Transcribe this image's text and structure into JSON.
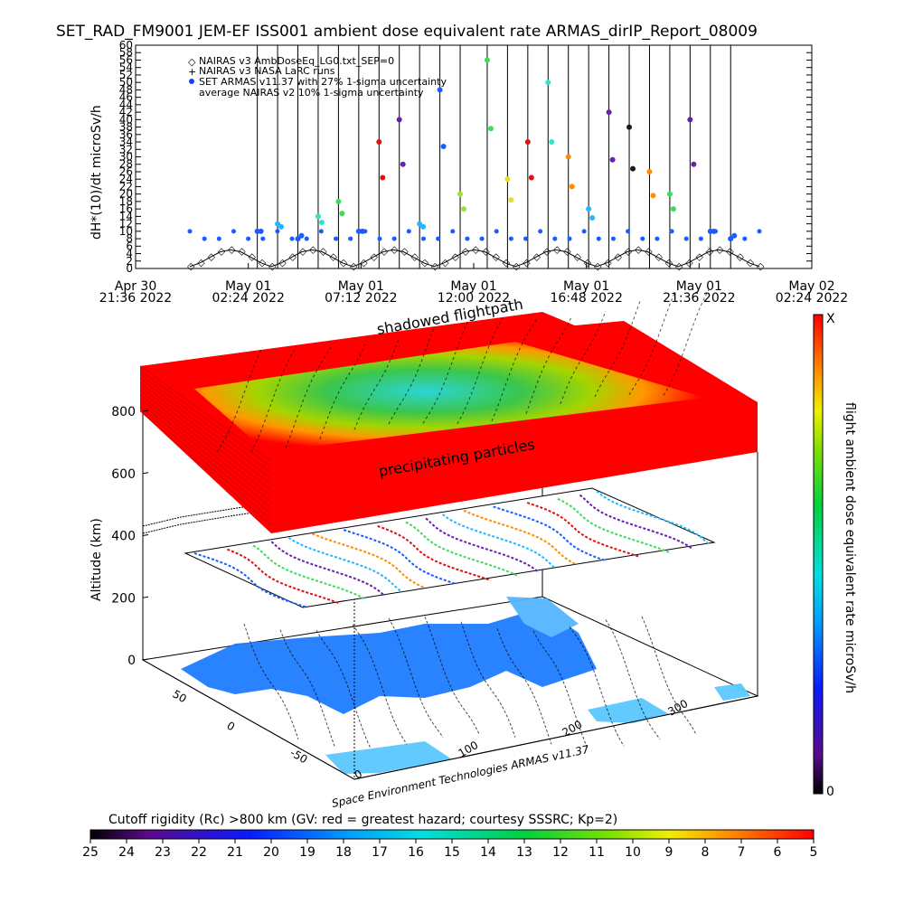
{
  "chart_data": [
    {
      "type": "line",
      "title": "SET_RAD_FM9001  JEM-EF ISS001 ambient dose equivalent rate ARMAS_dirIP_Report_08009",
      "ylabel": "dH*(10)/dt microSv/h",
      "ylim": [
        0,
        60
      ],
      "yticks": [
        0,
        2,
        4,
        6,
        8,
        10,
        12,
        14,
        16,
        18,
        20,
        22,
        24,
        26,
        28,
        30,
        32,
        34,
        36,
        38,
        40,
        42,
        44,
        46,
        48,
        50,
        52,
        54,
        56,
        58,
        60
      ],
      "xticks": [
        {
          "day": "Apr 30",
          "time": "21:36  2022"
        },
        {
          "day": "May 01",
          "time": "02:24  2022"
        },
        {
          "day": "May 01",
          "time": "07:12  2022"
        },
        {
          "day": "May 01",
          "time": "12:00  2022"
        },
        {
          "day": "May 01",
          "time": "16:48  2022"
        },
        {
          "day": "May 01",
          "time": "21:36  2022"
        },
        {
          "day": "May 02",
          "time": "02:24  2022"
        }
      ],
      "legend_position": "top-left",
      "series": [
        {
          "name": "NAIRAS v3 AmbDoseEq_LG0.txt_SEP=0",
          "marker": "diamond",
          "values_note_period_orbits": 15
        },
        {
          "name": "NAIRAS v3 NASA LaRC runs",
          "marker": "plus"
        },
        {
          "name": "SET ARMAS v11.37 with 27% 1-sigma uncertainty",
          "marker": "dot"
        },
        {
          "name": "average NAIRAS v2 10% 1-sigma uncertainty",
          "marker": "none"
        }
      ],
      "diamond_series_values": [
        0.5,
        1.5,
        3,
        4.5,
        5,
        4.5,
        3,
        1.5,
        0.5,
        1.5,
        3,
        4.5,
        5,
        4.5,
        3,
        1.5,
        0.5,
        1.5,
        3,
        4.5,
        5,
        4.5,
        3,
        1.5,
        0.5,
        1.5,
        3,
        4.5,
        5,
        4.5,
        3,
        1.5,
        0.5,
        1.5,
        3,
        4.5,
        5,
        4.5,
        3,
        1.5,
        0.5,
        1.5,
        3,
        4.5,
        5,
        4.5,
        3,
        1.5,
        0.5,
        1.5,
        3,
        4.5,
        5,
        4.5,
        3,
        1.5,
        0.5
      ],
      "armas_dots": [
        {
          "x": 0.18,
          "y": 10,
          "color": "#1a5cff"
        },
        {
          "x": 0.21,
          "y": 12,
          "color": "#22b8ff"
        },
        {
          "x": 0.24,
          "y": 8,
          "color": "#1a5cff"
        },
        {
          "x": 0.27,
          "y": 14,
          "color": "#2de5c8"
        },
        {
          "x": 0.3,
          "y": 18,
          "color": "#3ddc5a"
        },
        {
          "x": 0.33,
          "y": 10,
          "color": "#1a5cff"
        },
        {
          "x": 0.36,
          "y": 34,
          "color": "#e01010"
        },
        {
          "x": 0.39,
          "y": 40,
          "color": "#6a1fb0"
        },
        {
          "x": 0.42,
          "y": 12,
          "color": "#22b8ff"
        },
        {
          "x": 0.45,
          "y": 48,
          "color": "#1a5cff"
        },
        {
          "x": 0.48,
          "y": 20,
          "color": "#9fe03a"
        },
        {
          "x": 0.52,
          "y": 56,
          "color": "#3ddc5a"
        },
        {
          "x": 0.55,
          "y": 24,
          "color": "#e6e020"
        },
        {
          "x": 0.58,
          "y": 34,
          "color": "#e01010"
        },
        {
          "x": 0.61,
          "y": 50,
          "color": "#2de5c8"
        },
        {
          "x": 0.64,
          "y": 30,
          "color": "#ff8c00"
        },
        {
          "x": 0.67,
          "y": 16,
          "color": "#22b8ff"
        },
        {
          "x": 0.7,
          "y": 42,
          "color": "#6a1fb0"
        },
        {
          "x": 0.73,
          "y": 38,
          "color": "#1a1a1a"
        },
        {
          "x": 0.76,
          "y": 26,
          "color": "#ff8c00"
        },
        {
          "x": 0.79,
          "y": 20,
          "color": "#3ddc5a"
        },
        {
          "x": 0.82,
          "y": 40,
          "color": "#6a1fb0"
        },
        {
          "x": 0.85,
          "y": 10,
          "color": "#1a5cff"
        },
        {
          "x": 0.88,
          "y": 8,
          "color": "#1a5cff"
        }
      ]
    },
    {
      "type": "heatmap",
      "title": "",
      "annotations": [
        "shadowed flightpath",
        "precipitating particles"
      ],
      "zlabel": "Altitude (km)",
      "zticks": [
        0,
        200,
        400,
        600,
        800
      ],
      "lat_ticks": [
        50,
        0,
        -50
      ],
      "lon_ticks": [
        0,
        100,
        200,
        300
      ],
      "credit": "Space Environment Technologies ARMAS v11.37",
      "colorbar_right": {
        "label": "flight ambient dose equivalent rate microSv/h",
        "top_label": "X",
        "bottom_label": "0"
      },
      "colorbar_bottom": {
        "label": "Cutoff rigidity (Rc) >800 km (GV: red = greatest hazard; courtesy SSSRC; Kp=2)",
        "ticks": [
          25,
          24,
          23,
          22,
          21,
          20,
          19,
          18,
          17,
          16,
          15,
          14,
          13,
          12,
          11,
          10,
          9,
          8,
          7,
          6,
          5
        ]
      }
    }
  ]
}
